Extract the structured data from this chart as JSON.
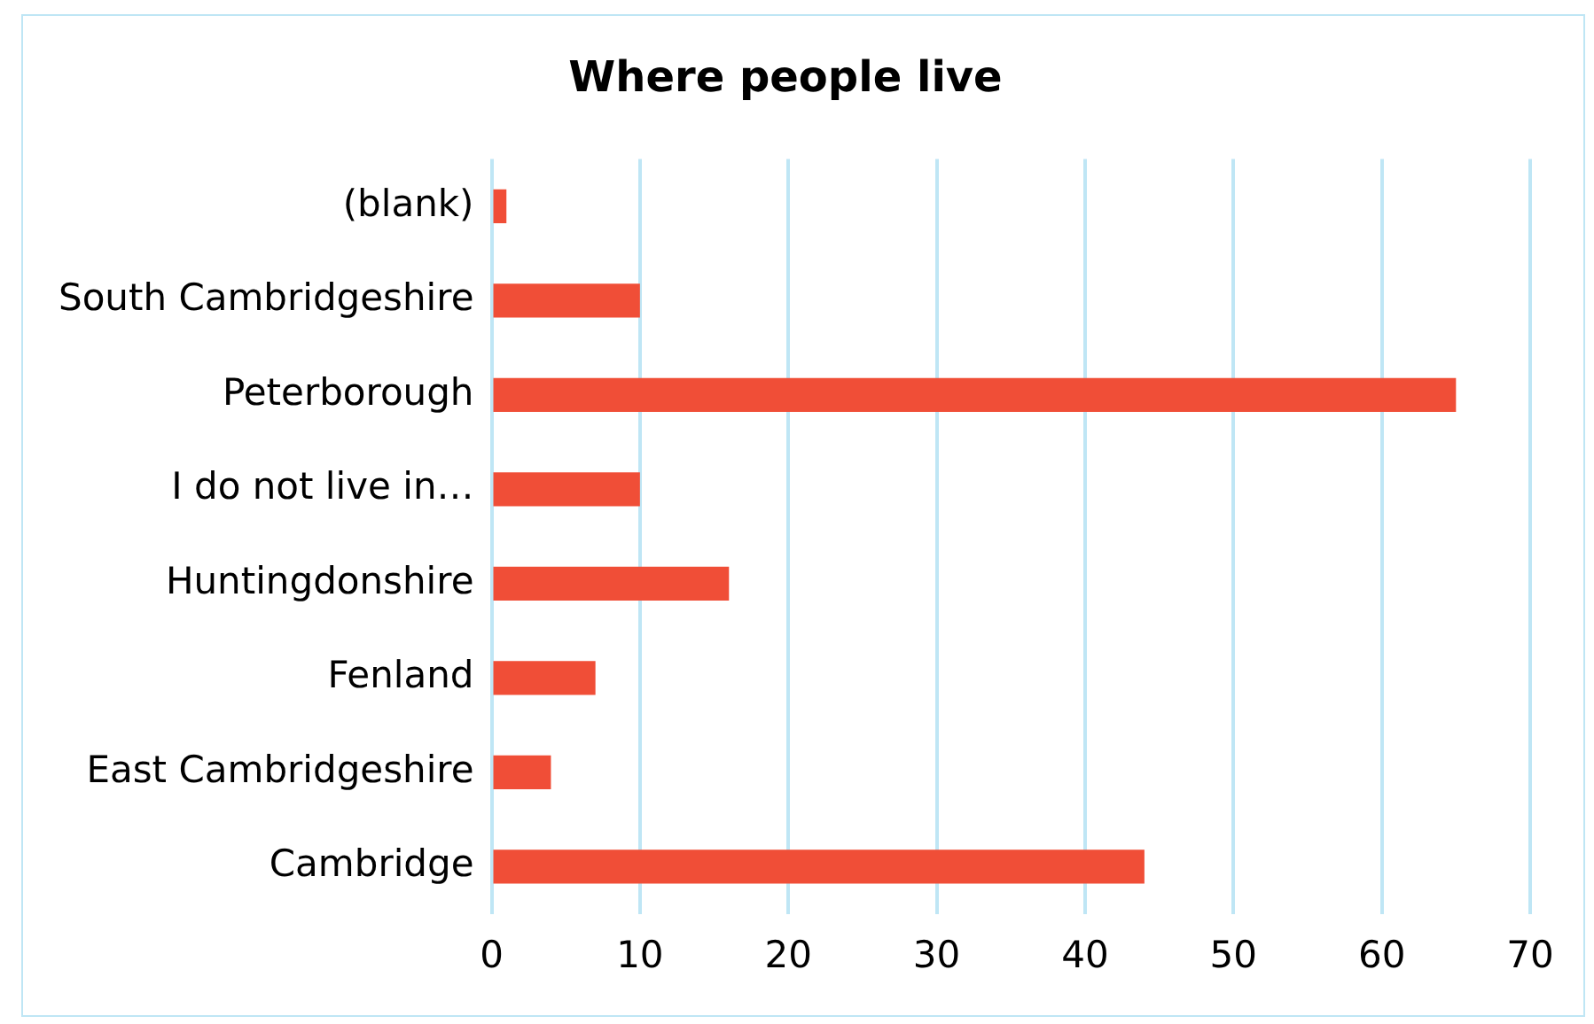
{
  "chart_data": {
    "type": "bar",
    "orientation": "horizontal",
    "title": "Where people live",
    "categories": [
      "(blank)",
      "South Cambridgeshire",
      "Peterborough",
      "I do not live in…",
      "Huntingdonshire",
      "Fenland",
      "East Cambridgeshire",
      "Cambridge"
    ],
    "values": [
      1,
      10,
      65,
      10,
      16,
      7,
      4,
      44
    ],
    "color": "#f04e37",
    "xlim": [
      0,
      70
    ],
    "xticks": [
      0,
      10,
      20,
      30,
      40,
      50,
      60,
      70
    ],
    "grid": "x",
    "legend": false
  }
}
